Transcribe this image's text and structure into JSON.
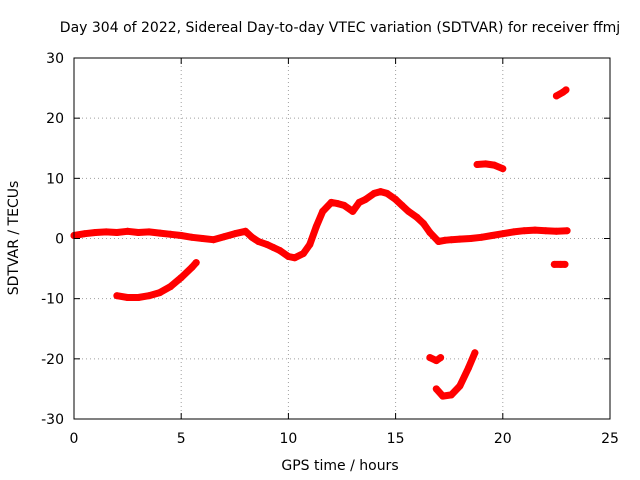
{
  "chart_data": {
    "type": "scatter",
    "title": "Day 304 of 2022, Sidereal Day-to-day VTEC variation (SDTVAR) for receiver ffmj",
    "xlabel": "GPS time / hours",
    "ylabel": "SDTVAR / TECUs",
    "xlim": [
      0,
      25
    ],
    "ylim": [
      -30,
      30
    ],
    "xticks": [
      0,
      5,
      10,
      15,
      20,
      25
    ],
    "yticks": [
      -30,
      -20,
      -10,
      0,
      10,
      20,
      30
    ],
    "xtick_labels": [
      "0",
      "5",
      "10",
      "15",
      "20",
      "25"
    ],
    "ytick_labels": [
      "-30",
      "-20",
      "-10",
      "0",
      "10",
      "20",
      "30"
    ],
    "grid": true,
    "series_color": "#ff0000",
    "series": [
      {
        "name": "main",
        "x": [
          0.0,
          0.5,
          1.0,
          1.5,
          2.0,
          2.5,
          3.0,
          3.5,
          4.0,
          4.5,
          5.0,
          5.5,
          6.0,
          6.5,
          7.0,
          7.5,
          8.0,
          8.3,
          8.6,
          9.0,
          9.3,
          9.6,
          10.0,
          10.3,
          10.7,
          11.0,
          11.3,
          11.6,
          12.0,
          12.3,
          12.6,
          13.0,
          13.3,
          13.6,
          14.0,
          14.3,
          14.6,
          15.0,
          15.3,
          15.6,
          16.0,
          16.3,
          16.6,
          17.0,
          17.3,
          17.6,
          18.0,
          18.5,
          19.0,
          19.5,
          20.0,
          20.5,
          21.0,
          21.5,
          22.0,
          22.5,
          23.0
        ],
        "y": [
          0.5,
          0.8,
          1.0,
          1.1,
          1.0,
          1.2,
          1.0,
          1.1,
          0.9,
          0.7,
          0.5,
          0.2,
          0.0,
          -0.2,
          0.3,
          0.8,
          1.2,
          0.2,
          -0.5,
          -1.0,
          -1.5,
          -2.0,
          -3.0,
          -3.2,
          -2.5,
          -1.0,
          2.0,
          4.5,
          6.0,
          5.8,
          5.5,
          4.5,
          6.0,
          6.5,
          7.5,
          7.8,
          7.5,
          6.5,
          5.5,
          4.5,
          3.5,
          2.5,
          1.0,
          -0.5,
          -0.3,
          -0.2,
          -0.1,
          0.0,
          0.2,
          0.5,
          0.8,
          1.1,
          1.3,
          1.4,
          1.3,
          1.2,
          1.3
        ]
      },
      {
        "name": "early-arc",
        "x": [
          2.0,
          2.5,
          3.0,
          3.5,
          4.0,
          4.5,
          5.0,
          5.5,
          5.7
        ],
        "y": [
          -9.5,
          -9.8,
          -9.8,
          -9.5,
          -9.0,
          -8.0,
          -6.5,
          -4.8,
          -4.0
        ]
      },
      {
        "name": "late-arc",
        "x": [
          16.9,
          17.2,
          17.6,
          18.0,
          18.4,
          18.7
        ],
        "y": [
          -25.0,
          -26.2,
          -26.0,
          -24.5,
          -21.5,
          -19.0
        ]
      },
      {
        "name": "short-segment-a",
        "x": [
          16.6,
          16.9,
          17.1
        ],
        "y": [
          -19.8,
          -20.3,
          -19.8
        ]
      },
      {
        "name": "arc-12",
        "x": [
          18.8,
          19.2,
          19.6,
          20.0
        ],
        "y": [
          12.3,
          12.4,
          12.2,
          11.6
        ]
      },
      {
        "name": "arc-24",
        "x": [
          22.5,
          22.8,
          22.95
        ],
        "y": [
          23.7,
          24.3,
          24.7
        ]
      },
      {
        "name": "short-segment-b",
        "x": [
          22.4,
          22.7,
          22.9
        ],
        "y": [
          -4.3,
          -4.3,
          -4.3
        ]
      }
    ]
  }
}
